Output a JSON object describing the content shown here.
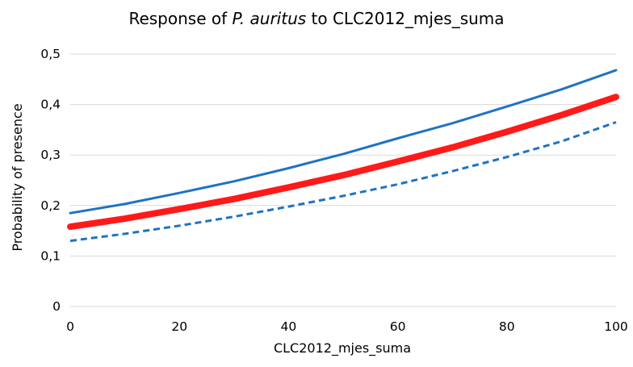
{
  "chart_data": {
    "type": "line",
    "title": {
      "prefix": "Response of ",
      "species": "P. auritus",
      "suffix": " to CLC2012_mjes_suma"
    },
    "xlabel": "CLC2012_mjes_suma",
    "ylabel": "Probability of presence",
    "xlim": [
      0,
      100
    ],
    "ylim": [
      0,
      0.5
    ],
    "x_ticks": [
      0,
      20,
      40,
      60,
      80,
      100
    ],
    "x_tick_labels": [
      "0",
      "20",
      "40",
      "60",
      "80",
      "100"
    ],
    "y_ticks": [
      0,
      0.1,
      0.2,
      0.3,
      0.4,
      0.5
    ],
    "y_tick_labels": [
      "0",
      "0,1",
      "0,2",
      "0,3",
      "0,4",
      "0,5"
    ],
    "grid": "horizontal",
    "legend": "none",
    "x": [
      0,
      10,
      20,
      30,
      40,
      50,
      60,
      70,
      80,
      90,
      100
    ],
    "series": [
      {
        "style": "solid",
        "color": "#1f73c3",
        "values": [
          0.185,
          0.203,
          0.225,
          0.248,
          0.274,
          0.302,
          0.333,
          0.363,
          0.396,
          0.43,
          0.468
        ]
      },
      {
        "style": "thick",
        "color": "#ff1a1a",
        "values": [
          0.158,
          0.174,
          0.193,
          0.213,
          0.236,
          0.26,
          0.287,
          0.315,
          0.346,
          0.379,
          0.415
        ]
      },
      {
        "style": "dashed",
        "color": "#1f73c3",
        "values": [
          0.13,
          0.144,
          0.16,
          0.178,
          0.198,
          0.219,
          0.242,
          0.268,
          0.296,
          0.327,
          0.365
        ]
      }
    ]
  }
}
